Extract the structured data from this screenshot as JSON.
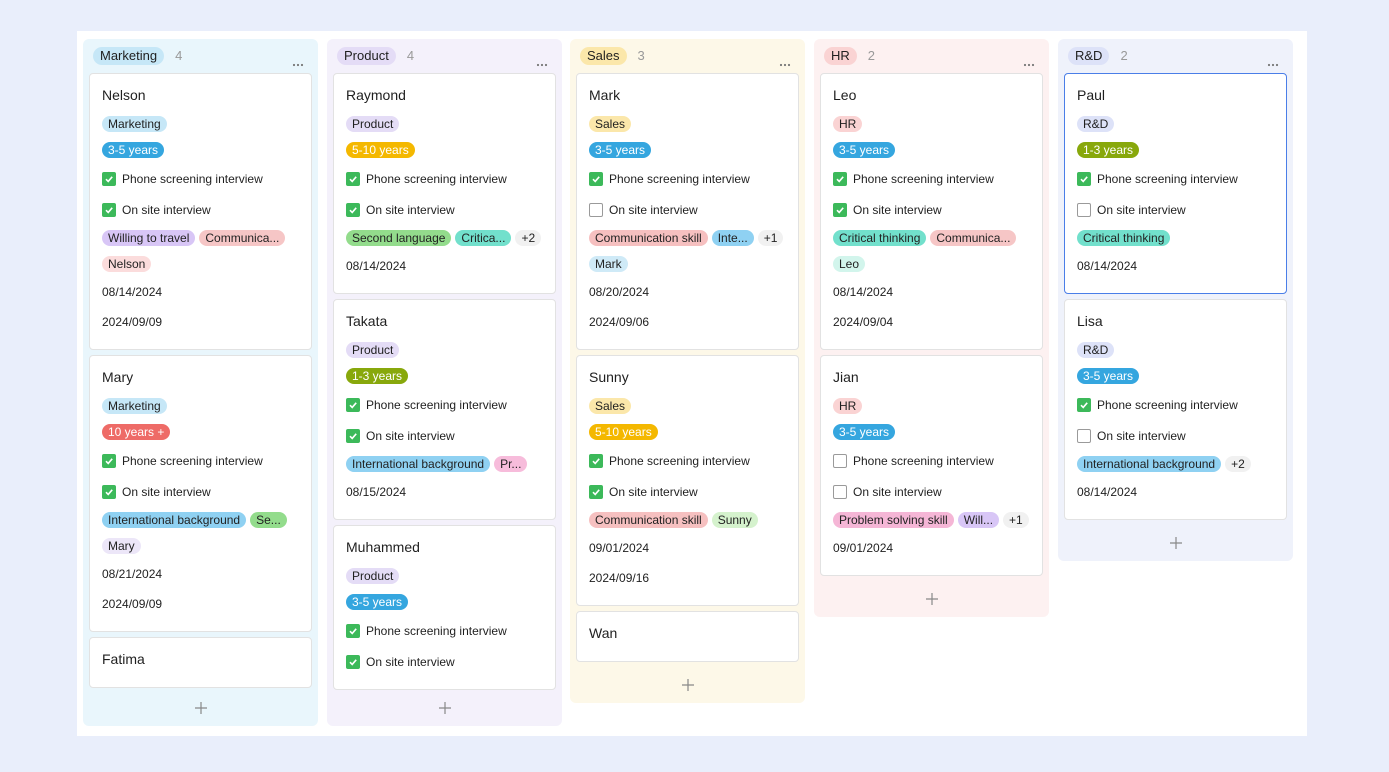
{
  "columns": [
    {
      "title": "Marketing",
      "count": 4,
      "color": "#c6e7f7",
      "background": "#e9f6fc",
      "cards": [
        {
          "name": "Nelson",
          "department": "Marketing",
          "experience": {
            "text": "3-5 years",
            "color": "#35a6df"
          },
          "checks": [
            {
              "label": "Phone screening interview",
              "checked": true
            },
            {
              "label": "On site interview",
              "checked": true
            }
          ],
          "chips": [
            {
              "text": "Willing to travel",
              "color": "#d8c6f6"
            },
            {
              "text": "Communica...",
              "color": "#f6c6c6"
            },
            {
              "text": "Nelson",
              "color": "#fbdcdc"
            }
          ],
          "dates": [
            "08/14/2024",
            "2024/09/09"
          ]
        },
        {
          "name": "Mary",
          "department": "Marketing",
          "experience": {
            "text": "10 years +",
            "color": "#ee6b67"
          },
          "checks": [
            {
              "label": "Phone screening interview",
              "checked": true
            },
            {
              "label": "On site interview",
              "checked": true
            }
          ],
          "chips": [
            {
              "text": "International background",
              "color": "#8fd1f2"
            },
            {
              "text": "Se...",
              "color": "#93dc8c"
            },
            {
              "text": "Mary",
              "color": "#ece6f8"
            }
          ],
          "dates": [
            "08/21/2024",
            "2024/09/09"
          ]
        },
        {
          "name": "Fatima"
        }
      ]
    },
    {
      "title": "Product",
      "count": 4,
      "color": "#e4dcf6",
      "background": "#f4f1fb",
      "cards": [
        {
          "name": "Raymond",
          "department": "Product",
          "experience": {
            "text": "5-10 years",
            "color": "#f4b800"
          },
          "checks": [
            {
              "label": "Phone screening interview",
              "checked": true
            },
            {
              "label": "On site interview",
              "checked": true
            }
          ],
          "chips": [
            {
              "text": "Second language",
              "color": "#93dc8c"
            },
            {
              "text": "Critica...",
              "color": "#72e0cc"
            },
            {
              "text": "+2",
              "color": "#f1f1f1"
            }
          ],
          "dates": [
            "08/14/2024"
          ]
        },
        {
          "name": "Takata",
          "department": "Product",
          "experience": {
            "text": "1-3 years",
            "color": "#88a80c"
          },
          "checks": [
            {
              "label": "Phone screening interview",
              "checked": true
            },
            {
              "label": "On site interview",
              "checked": true
            }
          ],
          "chips": [
            {
              "text": "International background",
              "color": "#8fd1f2"
            },
            {
              "text": "Pr...",
              "color": "#f7bcdb"
            }
          ],
          "dates": [
            "08/15/2024"
          ]
        },
        {
          "name": "Muhammed",
          "department": "Product",
          "experience": {
            "text": "3-5 years",
            "color": "#35a6df"
          },
          "checks": [
            {
              "label": "Phone screening interview",
              "checked": true
            },
            {
              "label": "On site interview",
              "checked": true
            }
          ]
        }
      ]
    },
    {
      "title": "Sales",
      "count": 3,
      "color": "#fbe7aa",
      "background": "#fdf8e8",
      "cards": [
        {
          "name": "Mark",
          "department": "Sales",
          "experience": {
            "text": "3-5 years",
            "color": "#35a6df"
          },
          "checks": [
            {
              "label": "Phone screening interview",
              "checked": true
            },
            {
              "label": "On site interview",
              "checked": false
            }
          ],
          "chips": [
            {
              "text": "Communication skill",
              "color": "#f6c0c0"
            },
            {
              "text": "Inte...",
              "color": "#8fd1f2"
            },
            {
              "text": "+1",
              "color": "#f1f1f1"
            },
            {
              "text": "Mark",
              "color": "#cfeaf7"
            }
          ],
          "dates": [
            "08/20/2024",
            "2024/09/06"
          ]
        },
        {
          "name": "Sunny",
          "department": "Sales",
          "experience": {
            "text": "5-10 years",
            "color": "#f4b800"
          },
          "checks": [
            {
              "label": "Phone screening interview",
              "checked": true
            },
            {
              "label": "On site interview",
              "checked": true
            }
          ],
          "chips": [
            {
              "text": "Communication skill",
              "color": "#f6c0c0"
            },
            {
              "text": "Sunny",
              "color": "#d5f2cd"
            }
          ],
          "dates": [
            "09/01/2024",
            "2024/09/16"
          ]
        },
        {
          "name": "Wan"
        }
      ]
    },
    {
      "title": "HR",
      "count": 2,
      "color": "#fad3d3",
      "background": "#fdf1f1",
      "cards": [
        {
          "name": "Leo",
          "department": "HR",
          "experience": {
            "text": "3-5 years",
            "color": "#35a6df"
          },
          "checks": [
            {
              "label": "Phone screening interview",
              "checked": true
            },
            {
              "label": "On site interview",
              "checked": true
            }
          ],
          "chips": [
            {
              "text": "Critical thinking",
              "color": "#72e0cc"
            },
            {
              "text": "Communica...",
              "color": "#f6c6c6"
            },
            {
              "text": "Leo",
              "color": "#d2f5ec"
            }
          ],
          "dates": [
            "08/14/2024",
            "2024/09/04"
          ]
        },
        {
          "name": "Jian",
          "department": "HR",
          "experience": {
            "text": "3-5 years",
            "color": "#35a6df"
          },
          "checks": [
            {
              "label": "Phone screening interview",
              "checked": false
            },
            {
              "label": "On site interview",
              "checked": false
            }
          ],
          "chips": [
            {
              "text": "Problem solving skill",
              "color": "#f5b6d6"
            },
            {
              "text": "Will...",
              "color": "#d8c6f6"
            },
            {
              "text": "+1",
              "color": "#f1f1f1"
            }
          ],
          "dates": [
            "09/01/2024"
          ]
        }
      ]
    },
    {
      "title": "R&D",
      "count": 2,
      "color": "#dde2f8",
      "background": "#eff2fb",
      "cards": [
        {
          "name": "Paul",
          "department": "R&D",
          "experience": {
            "text": "1-3 years",
            "color": "#88a80c"
          },
          "selected": true,
          "checks": [
            {
              "label": "Phone screening interview",
              "checked": true
            },
            {
              "label": "On site interview",
              "checked": false
            }
          ],
          "chips": [
            {
              "text": "Critical thinking",
              "color": "#72e0cc"
            }
          ],
          "dates": [
            "08/14/2024"
          ]
        },
        {
          "name": "Lisa",
          "department": "R&D",
          "experience": {
            "text": "3-5 years",
            "color": "#35a6df"
          },
          "checks": [
            {
              "label": "Phone screening interview",
              "checked": true
            },
            {
              "label": "On site interview",
              "checked": false
            }
          ],
          "chips": [
            {
              "text": "International background",
              "color": "#8fd1f2"
            },
            {
              "text": "+2",
              "color": "#f1f1f1"
            }
          ],
          "dates": [
            "08/14/2024"
          ]
        }
      ]
    }
  ]
}
